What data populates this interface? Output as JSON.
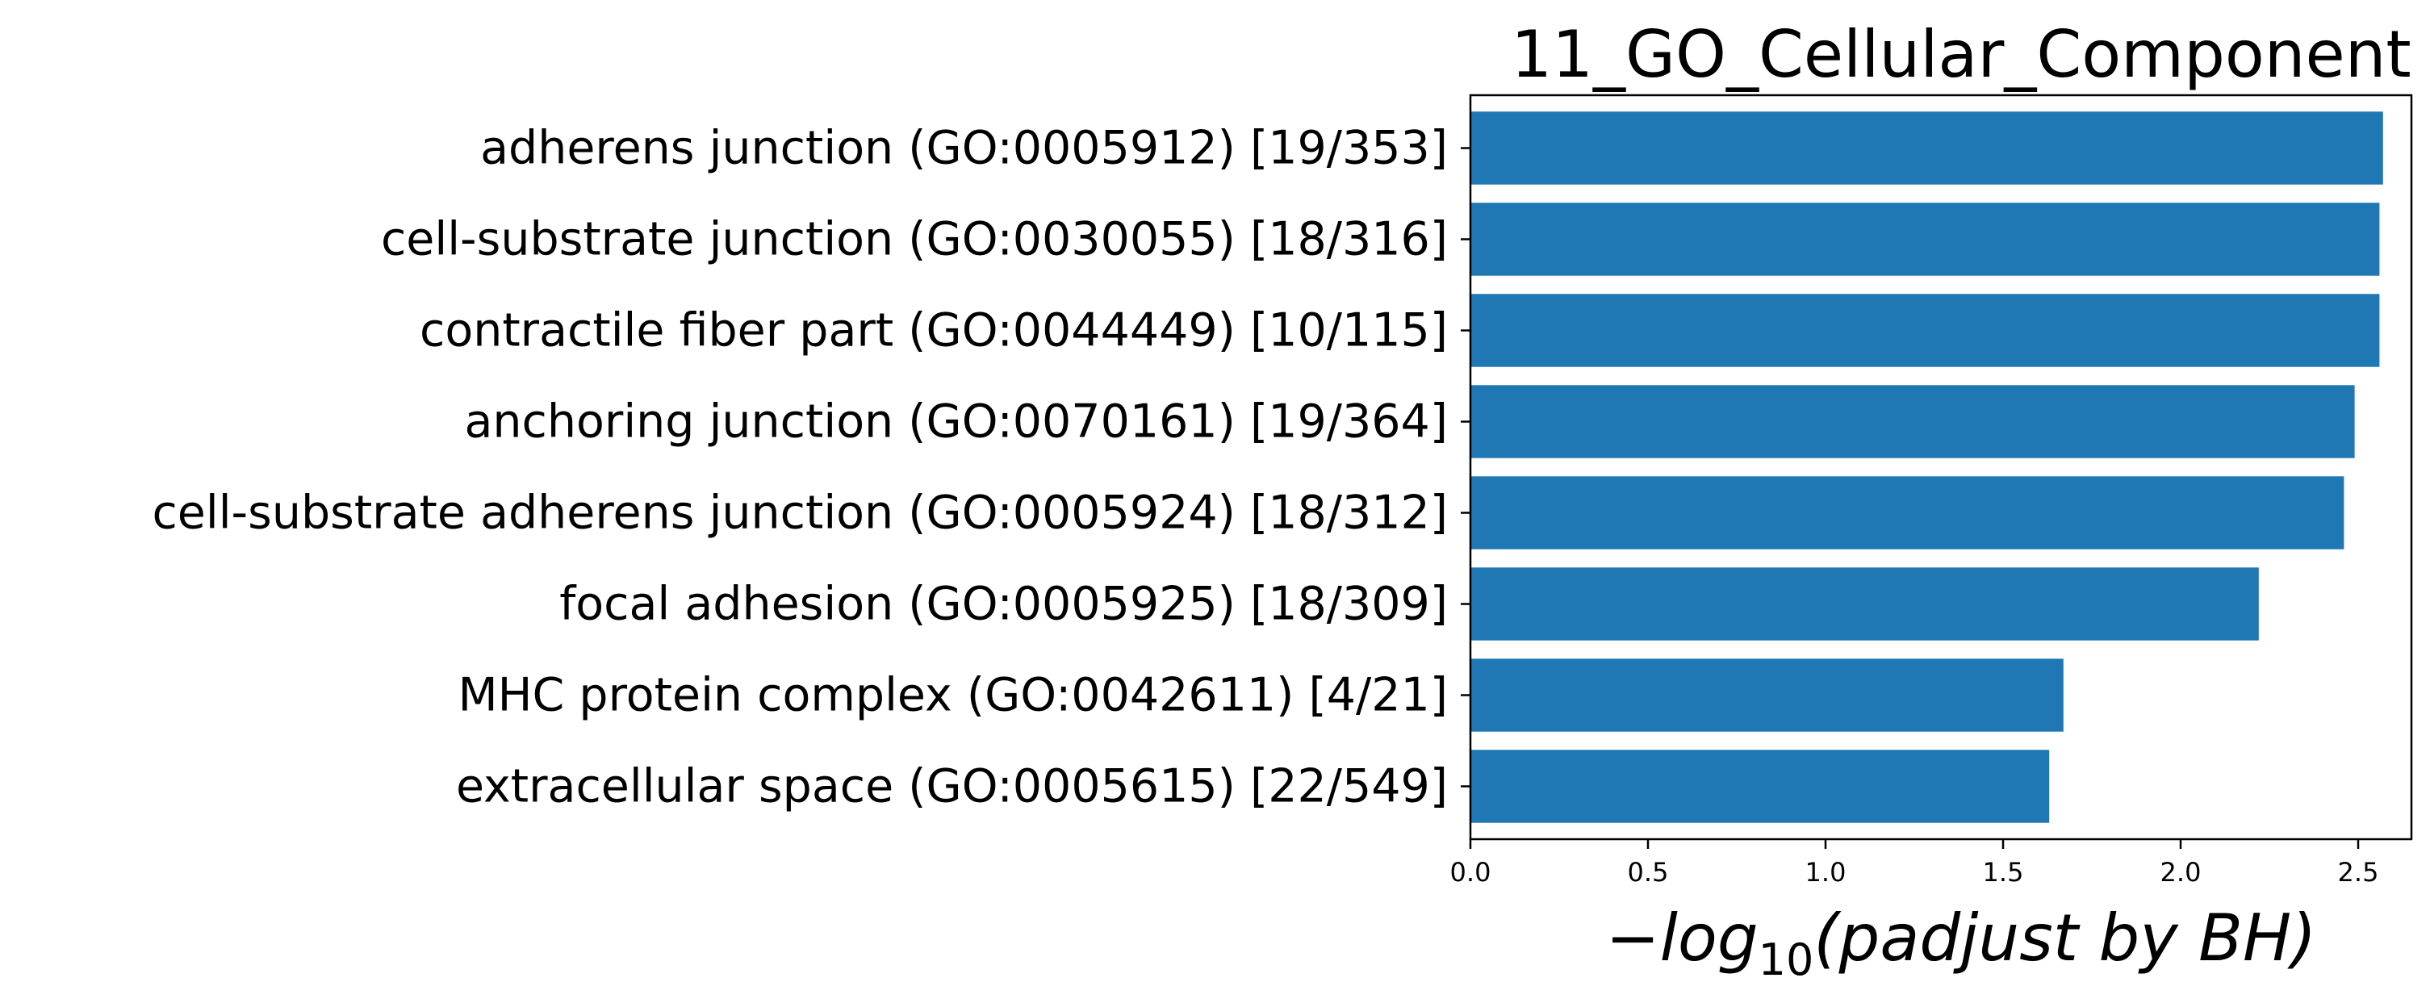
{
  "chart_data": {
    "type": "bar",
    "orientation": "horizontal",
    "title": "11_GO_Cellular_Component",
    "xlabel": {
      "minus": "−",
      "log": "log",
      "base": "10",
      "rest": "(padjust by BH)"
    },
    "ylabel": "",
    "xlim": [
      0,
      2.65
    ],
    "xticks": [
      "0.0",
      "0.5",
      "1.0",
      "1.5",
      "2.0",
      "2.5"
    ],
    "grid": false,
    "legend": "none",
    "bar_color": "#1f77b4",
    "categories": [
      "adherens junction (GO:0005912) [19/353]",
      "cell-substrate junction (GO:0030055) [18/316]",
      "contractile fiber part (GO:0044449) [10/115]",
      "anchoring junction (GO:0070161) [19/364]",
      "cell-substrate adherens junction (GO:0005924) [18/312]",
      "focal adhesion (GO:0005925) [18/309]",
      "MHC protein complex (GO:0042611) [4/21]",
      "extracellular space (GO:0005615) [22/549]"
    ],
    "values": [
      2.57,
      2.56,
      2.56,
      2.49,
      2.46,
      2.22,
      1.67,
      1.63
    ]
  }
}
